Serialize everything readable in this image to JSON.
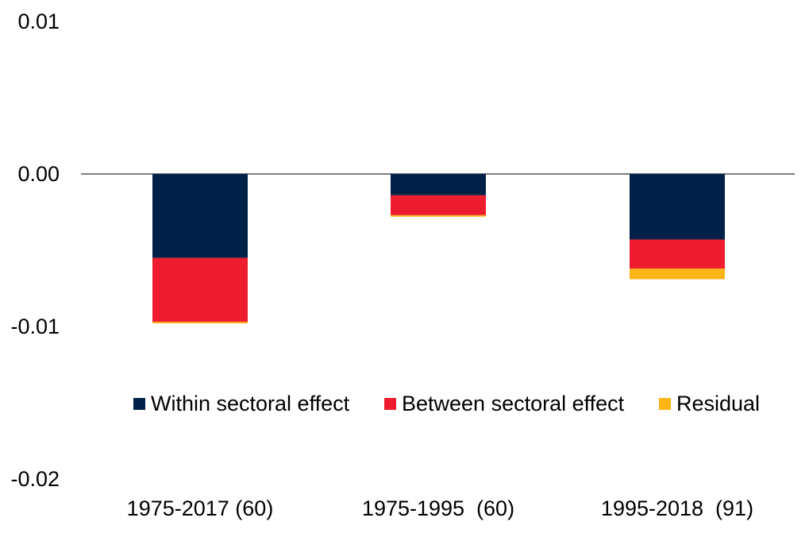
{
  "chart_data": {
    "type": "bar",
    "stacked": true,
    "categories": [
      "1975-2017 (60)",
      "1975-1995  (60)",
      "1995-2018  (91)"
    ],
    "series": [
      {
        "name": "Within sectoral effect",
        "color": "#002147",
        "values": [
          -0.0055,
          -0.0014,
          -0.0043
        ]
      },
      {
        "name": "Between sectoral effect",
        "color": "#ED1C2E",
        "values": [
          -0.0042,
          -0.0013,
          -0.0019
        ]
      },
      {
        "name": "Residual",
        "color": "#FDB515",
        "values": [
          -0.0001,
          -0.0001,
          -0.0007
        ]
      }
    ],
    "y_ticks": [
      0.01,
      0.0,
      -0.01,
      -0.02
    ],
    "y_tick_labels": [
      "0.01",
      "0.00",
      "-0.01",
      "-0.02"
    ],
    "ylim": [
      -0.02,
      0.01
    ],
    "grid": false,
    "legend_position": "inside-bottom"
  }
}
